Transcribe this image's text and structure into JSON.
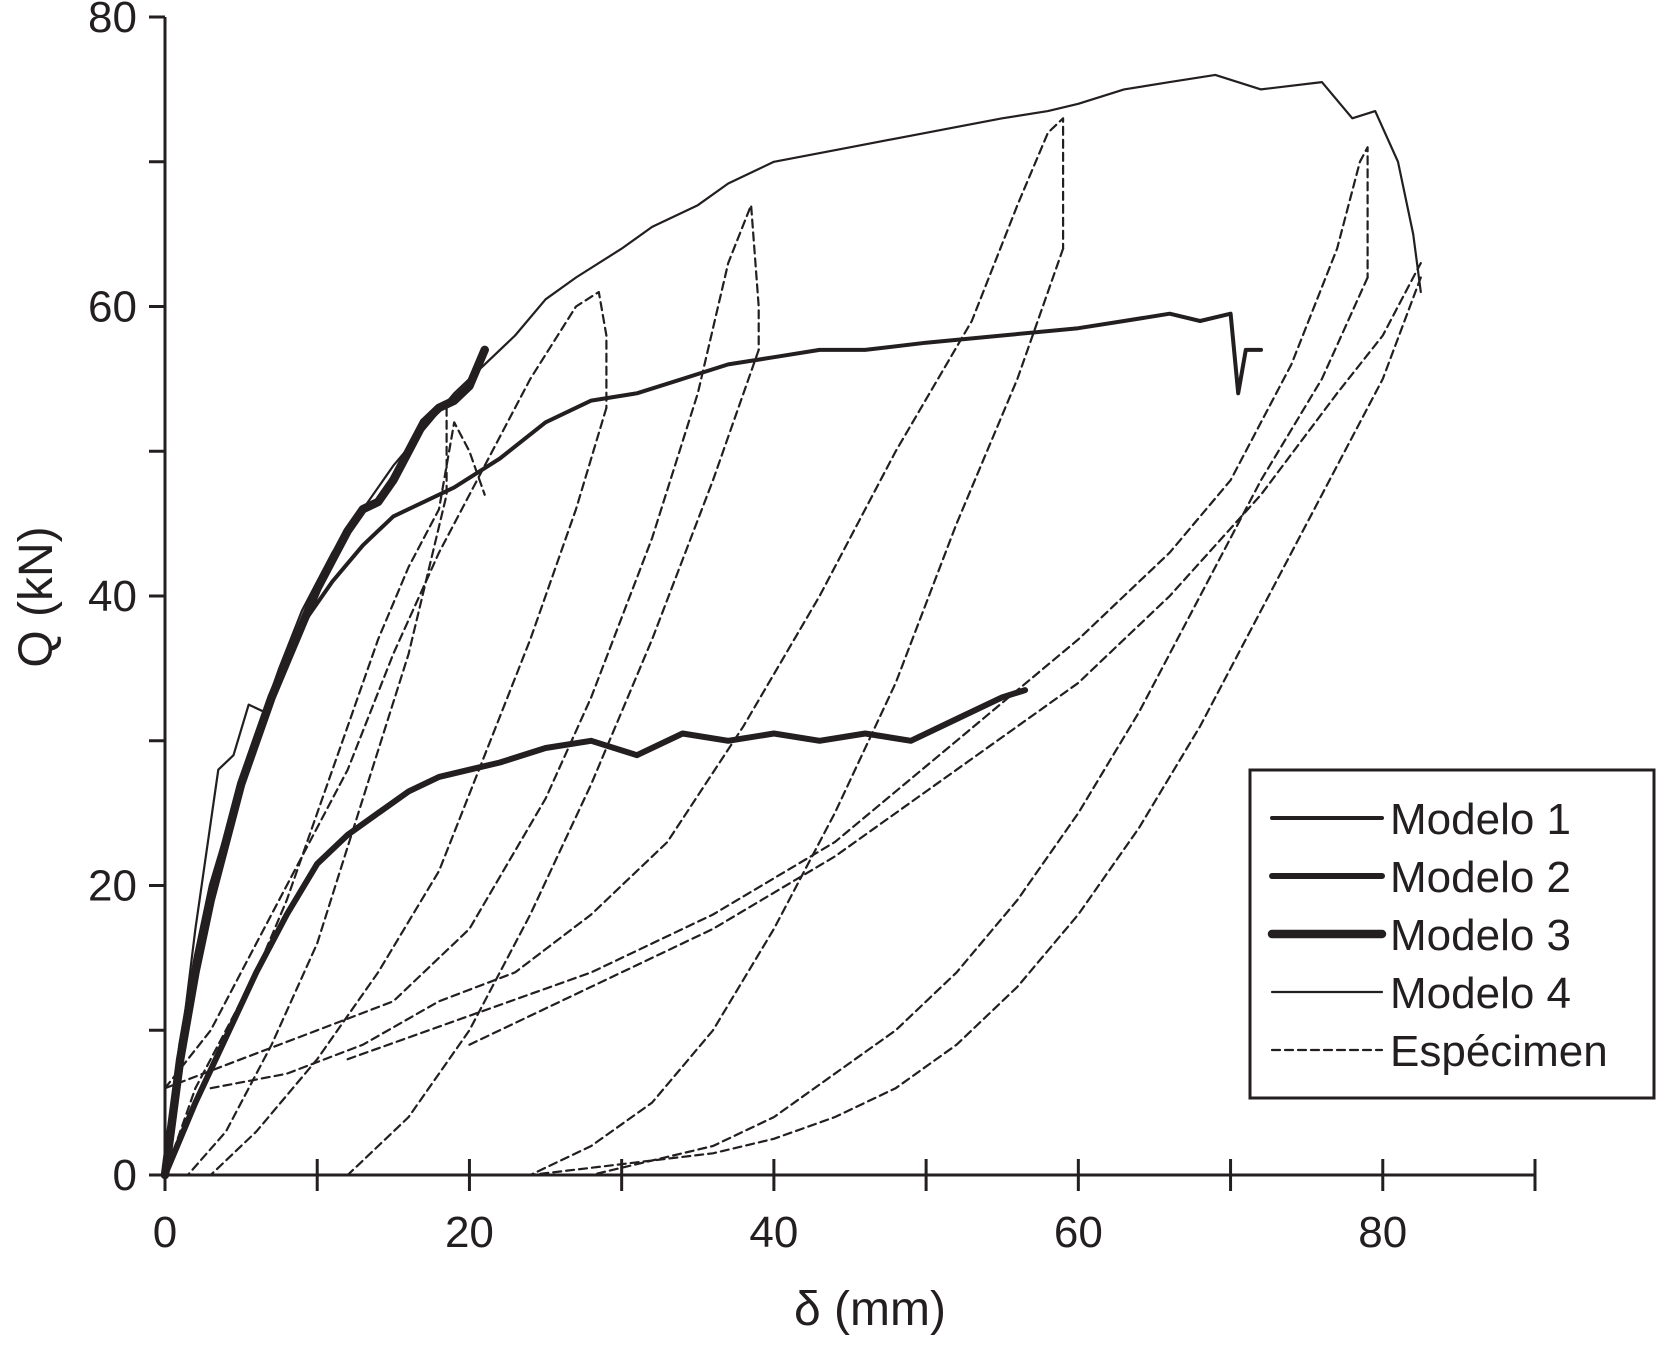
{
  "chart_data": {
    "type": "line",
    "xlabel": "δ (mm)",
    "ylabel": "Q (kN)",
    "xlim": [
      0,
      90
    ],
    "ylim": [
      0,
      80
    ],
    "x_ticks": [
      0,
      20,
      40,
      60,
      80
    ],
    "y_ticks": [
      0,
      20,
      40,
      60,
      80
    ],
    "x_minor_step": 10,
    "y_minor_step": 10,
    "grid": false,
    "legend_position": "bottom-right",
    "series": [
      {
        "name": "Modelo 1",
        "style": "medium",
        "x": [
          0,
          1,
          2,
          3,
          5,
          7,
          9,
          11,
          13,
          15,
          17,
          19,
          22,
          25,
          28,
          31,
          34,
          37,
          40,
          43,
          46,
          50,
          55,
          60,
          63,
          66,
          68,
          70,
          70.5,
          71,
          71.5,
          72
        ],
        "y": [
          0,
          9,
          15,
          20,
          27,
          33,
          38,
          41,
          43.5,
          45.5,
          46.5,
          47.5,
          49.5,
          52,
          53.5,
          54,
          55,
          56,
          56.5,
          57,
          57,
          57.5,
          58,
          58.5,
          59,
          59.5,
          59,
          59.5,
          54,
          57,
          57,
          57
        ]
      },
      {
        "name": "Modelo 2",
        "style": "thick",
        "x": [
          0,
          2,
          4,
          6,
          8,
          10,
          12,
          14,
          16,
          18,
          20,
          22,
          25,
          28,
          31,
          34,
          37,
          40,
          43,
          46,
          49,
          52,
          55,
          56.5
        ],
        "y": [
          0,
          5,
          9.5,
          14,
          18,
          21.5,
          23.5,
          25,
          26.5,
          27.5,
          28,
          28.5,
          29.5,
          30,
          29,
          30.5,
          30,
          30.5,
          30,
          30.5,
          30,
          31.5,
          33,
          33.5
        ]
      },
      {
        "name": "Modelo 3",
        "style": "thicker",
        "x": [
          0,
          1,
          2,
          3,
          4,
          5,
          6,
          7,
          8,
          9,
          10,
          11,
          12,
          13,
          14,
          15,
          16,
          17,
          18,
          19,
          20,
          21
        ],
        "y": [
          0,
          8,
          14,
          19,
          23,
          27,
          30,
          33,
          35.5,
          38,
          40.5,
          42.5,
          44.5,
          46,
          46.5,
          48,
          50,
          52,
          53,
          53.5,
          54.5,
          57
        ]
      },
      {
        "name": "Modelo 4",
        "style": "thin",
        "x": [
          0,
          2,
          3.5,
          4.5,
          5.5,
          6.5,
          7.5,
          9,
          11,
          13,
          15,
          17,
          19,
          21,
          23,
          25,
          27,
          30,
          32,
          35,
          37,
          39,
          40,
          45,
          50,
          55,
          58,
          60,
          63,
          66,
          69,
          72,
          76,
          78,
          79.5,
          81,
          82,
          82.5
        ],
        "y": [
          0,
          17,
          28,
          29,
          32.5,
          32,
          35,
          39,
          43,
          46,
          49,
          51.5,
          54,
          56,
          58,
          60.5,
          62,
          64,
          65.5,
          67,
          68.5,
          69.5,
          70,
          71,
          72,
          73,
          73.5,
          74,
          75,
          75.5,
          76,
          75,
          75.5,
          73,
          73.5,
          70,
          65,
          61
        ]
      },
      {
        "name": "Espécimen",
        "style": "dashed",
        "loops": [
          {
            "x": [
              0,
              2,
              4,
              6,
              8,
              10,
              12,
              14,
              16,
              18,
              19,
              20,
              21
            ],
            "y": [
              0,
              6,
              10,
              14,
              19,
              25,
              31,
              37,
              42,
              46,
              52,
              50,
              47
            ]
          },
          {
            "x": [
              18.5,
              18.5,
              16,
              13,
              10,
              7,
              4,
              1.5
            ],
            "y": [
              53,
              47,
              36,
              26,
              16,
              9,
              3,
              0
            ]
          },
          {
            "x": [
              0,
              3,
              6,
              9,
              12,
              15,
              18,
              21,
              24,
              27,
              28.5,
              29,
              29
            ],
            "y": [
              6,
              10,
              16,
              22,
              28,
              36,
              43,
              49,
              55,
              60,
              61,
              58,
              53
            ]
          },
          {
            "x": [
              29,
              27,
              24,
              21,
              18,
              14,
              10,
              6,
              3
            ],
            "y": [
              53,
              46,
              37,
              29,
              21,
              14,
              8,
              3,
              0
            ]
          },
          {
            "x": [
              0,
              5,
              10,
              15,
              20,
              25,
              28,
              32,
              35,
              37,
              38.5,
              39,
              39
            ],
            "y": [
              6,
              8,
              10,
              12,
              17,
              26,
              33,
              44,
              54,
              63,
              67,
              60,
              57
            ]
          },
          {
            "x": [
              39,
              36,
              32,
              28,
              24,
              20,
              16,
              12
            ],
            "y": [
              57,
              48,
              37,
              27,
              18,
              10,
              4,
              0
            ]
          },
          {
            "x": [
              3,
              8,
              13,
              18,
              23,
              28,
              33,
              38,
              43,
              48,
              53,
              56,
              58,
              59,
              59
            ],
            "y": [
              6,
              7,
              9,
              12,
              14,
              18,
              23,
              31,
              40,
              50,
              59,
              67,
              72,
              73,
              64
            ]
          },
          {
            "x": [
              59,
              56,
              52,
              48,
              44,
              40,
              36,
              32,
              28,
              24
            ],
            "y": [
              64,
              55,
              45,
              34,
              25,
              17,
              10,
              5,
              2,
              0
            ]
          },
          {
            "x": [
              12,
              20,
              28,
              36,
              44,
              52,
              60,
              66,
              70,
              74,
              77,
              78.5,
              79,
              79
            ],
            "y": [
              8,
              11,
              14,
              18,
              23,
              30,
              37,
              43,
              48,
              56,
              64,
              70,
              71,
              62
            ]
          },
          {
            "x": [
              79,
              76,
              72,
              68,
              64,
              60,
              56,
              52,
              48,
              44,
              40,
              36,
              32,
              28
            ],
            "y": [
              62,
              55,
              48,
              40,
              32,
              25,
              19,
              14,
              10,
              7,
              4,
              2,
              1,
              0
            ]
          },
          {
            "x": [
              20,
              28,
              36,
              44,
              52,
              60,
              66,
              72,
              77,
              80,
              82,
              82.5
            ],
            "y": [
              9,
              13,
              17,
              22,
              28,
              34,
              40,
              47,
              54,
              58,
              62,
              63
            ]
          },
          {
            "x": [
              82.5,
              80,
              76,
              72,
              68,
              64,
              60,
              56,
              52,
              48,
              44,
              40,
              36,
              32,
              28,
              24
            ],
            "y": [
              62,
              55,
              47,
              39,
              31,
              24,
              18,
              13,
              9,
              6,
              4,
              2.5,
              1.5,
              1,
              0.5,
              0
            ]
          }
        ]
      }
    ]
  }
}
